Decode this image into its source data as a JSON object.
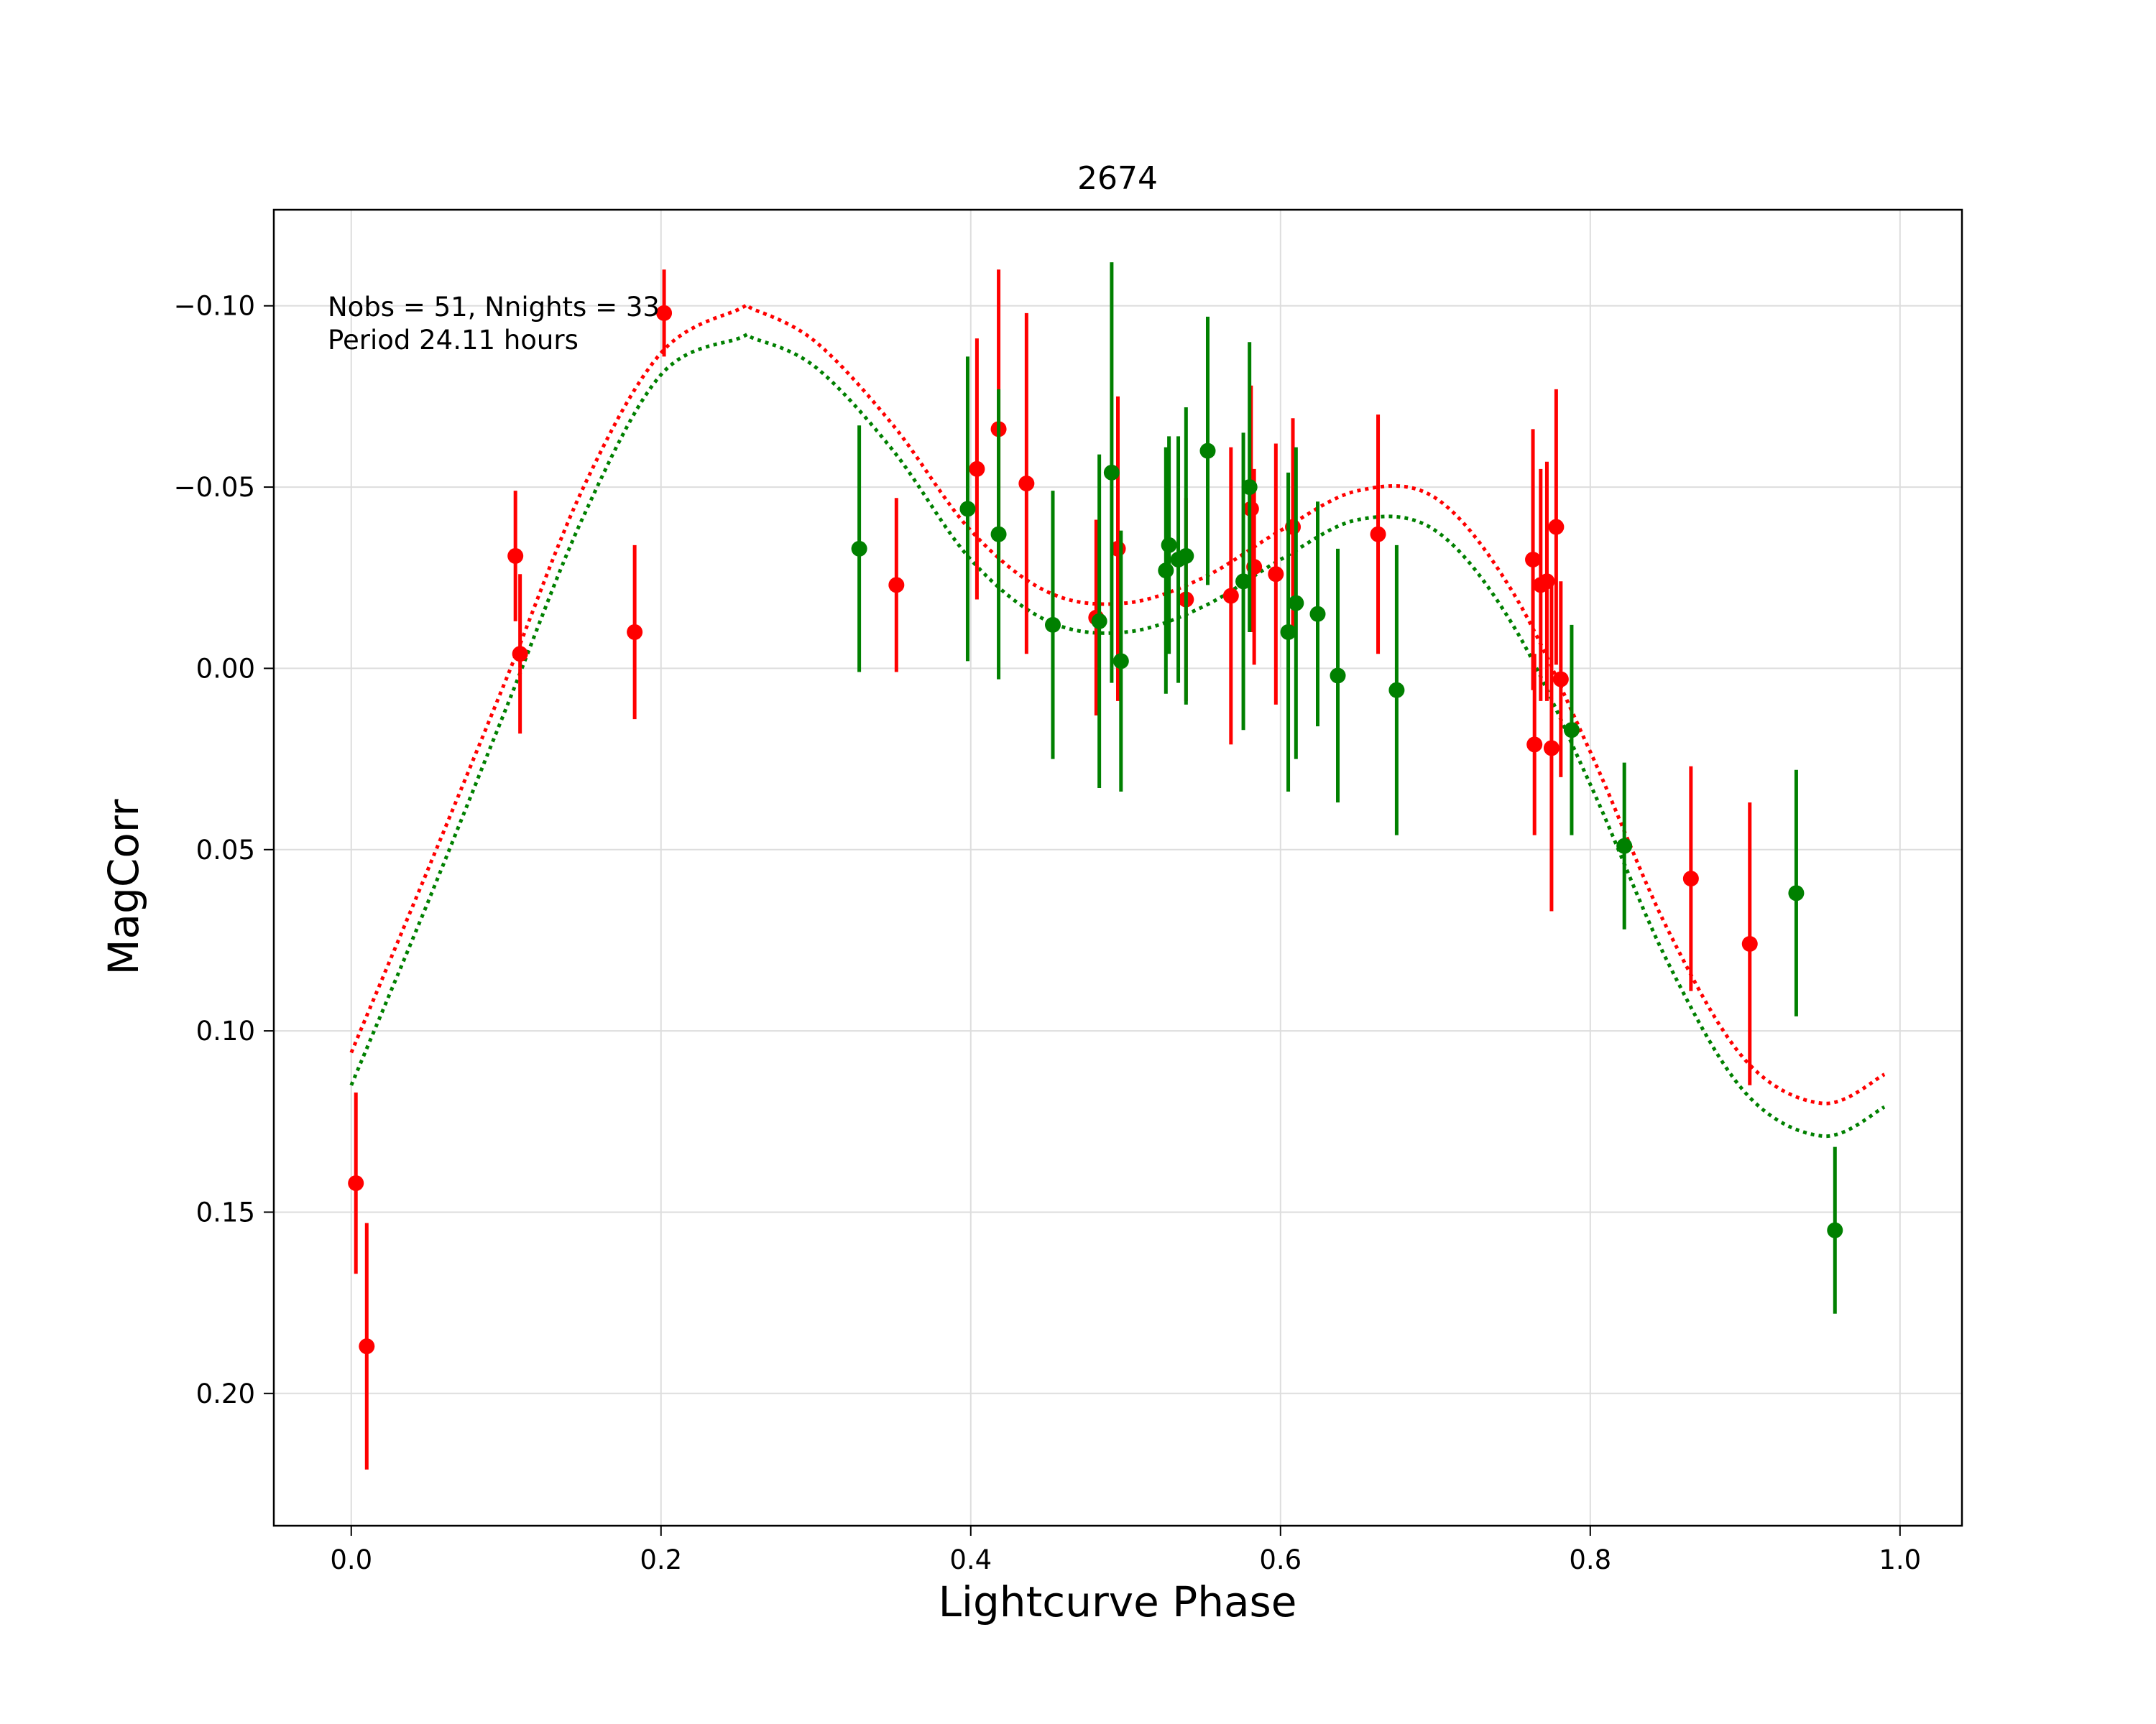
{
  "chart_data": {
    "type": "scatter",
    "title": "2674",
    "xlabel": "Lightcurve Phase",
    "ylabel": "MagCorr",
    "xlim": [
      -0.05,
      1.04
    ],
    "ylim": [
      0.2365,
      -0.1265
    ],
    "y_inverted": true,
    "grid": true,
    "xticks": [
      {
        "value": 0.0,
        "label": "0.0"
      },
      {
        "value": 0.2,
        "label": "0.2"
      },
      {
        "value": 0.4,
        "label": "0.4"
      },
      {
        "value": 0.6,
        "label": "0.6"
      },
      {
        "value": 0.8,
        "label": "0.8"
      },
      {
        "value": 1.0,
        "label": "1.0"
      }
    ],
    "yticks": [
      {
        "value": -0.1,
        "label": "−0.10"
      },
      {
        "value": -0.05,
        "label": "−0.05"
      },
      {
        "value": 0.0,
        "label": "0.00"
      },
      {
        "value": 0.05,
        "label": "0.05"
      },
      {
        "value": 0.1,
        "label": "0.10"
      },
      {
        "value": 0.15,
        "label": "0.15"
      },
      {
        "value": 0.2,
        "label": "0.20"
      }
    ],
    "annotations": [
      "Nobs = 51, Nnights = 33",
      "Period 24.11 hours"
    ],
    "series": [
      {
        "color": "#ff0000",
        "points": [
          [
            0.003,
            0.142,
            0.025
          ],
          [
            0.01,
            0.187,
            0.034
          ],
          [
            0.106,
            -0.031,
            0.018
          ],
          [
            0.109,
            -0.004,
            0.022
          ],
          [
            0.183,
            -0.01,
            0.024
          ],
          [
            0.202,
            -0.098,
            0.012
          ],
          [
            0.352,
            -0.023,
            0.024
          ],
          [
            0.404,
            -0.055,
            0.036
          ],
          [
            0.418,
            -0.066,
            0.044
          ],
          [
            0.436,
            -0.051,
            0.047
          ],
          [
            0.481,
            -0.014,
            0.027
          ],
          [
            0.495,
            -0.033,
            0.042
          ],
          [
            0.539,
            -0.019,
            0.028
          ],
          [
            0.568,
            -0.02,
            0.041
          ],
          [
            0.581,
            -0.044,
            0.034
          ],
          [
            0.583,
            -0.028,
            0.027
          ],
          [
            0.597,
            -0.026,
            0.036
          ],
          [
            0.608,
            -0.039,
            0.03
          ],
          [
            0.663,
            -0.037,
            0.033
          ],
          [
            0.763,
            -0.03,
            0.036
          ],
          [
            0.764,
            0.021,
            0.025
          ],
          [
            0.768,
            -0.023,
            0.032
          ],
          [
            0.772,
            -0.024,
            0.033
          ],
          [
            0.775,
            0.022,
            0.045
          ],
          [
            0.778,
            -0.039,
            0.038
          ],
          [
            0.781,
            0.003,
            0.027
          ],
          [
            0.865,
            0.058,
            0.031
          ],
          [
            0.903,
            0.076,
            0.039
          ]
        ]
      },
      {
        "color": "#008000",
        "points": [
          [
            0.328,
            -0.033,
            0.034
          ],
          [
            0.398,
            -0.044,
            0.042
          ],
          [
            0.418,
            -0.037,
            0.04
          ],
          [
            0.453,
            -0.012,
            0.037
          ],
          [
            0.483,
            -0.013,
            0.046
          ],
          [
            0.491,
            -0.054,
            0.058
          ],
          [
            0.497,
            -0.002,
            0.036
          ],
          [
            0.526,
            -0.027,
            0.034
          ],
          [
            0.528,
            -0.034,
            0.03
          ],
          [
            0.534,
            -0.03,
            0.034
          ],
          [
            0.539,
            -0.031,
            0.041
          ],
          [
            0.553,
            -0.06,
            0.037
          ],
          [
            0.576,
            -0.024,
            0.041
          ],
          [
            0.58,
            -0.05,
            0.04
          ],
          [
            0.605,
            -0.01,
            0.044
          ],
          [
            0.61,
            -0.018,
            0.043
          ],
          [
            0.624,
            -0.015,
            0.031
          ],
          [
            0.637,
            0.002,
            0.035
          ],
          [
            0.675,
            0.006,
            0.04
          ],
          [
            0.788,
            0.017,
            0.029
          ],
          [
            0.822,
            0.049,
            0.023
          ],
          [
            0.933,
            0.062,
            0.034
          ],
          [
            0.958,
            0.155,
            0.023
          ]
        ]
      }
    ],
    "model_curves": [
      {
        "color": "#ff0000",
        "style": "dotted",
        "x": [
          0.0,
          0.05,
          0.1,
          0.15,
          0.2,
          0.25,
          0.26,
          0.3,
          0.35,
          0.4,
          0.45,
          0.5,
          0.55,
          0.6,
          0.65,
          0.7,
          0.75,
          0.8,
          0.85,
          0.9,
          0.95,
          0.99
        ],
        "y": [
          0.106,
          0.055,
          0.003,
          -0.05,
          -0.087,
          -0.099,
          -0.099,
          -0.09,
          -0.067,
          -0.038,
          -0.021,
          -0.018,
          -0.025,
          -0.038,
          -0.049,
          -0.047,
          -0.021,
          0.023,
          0.072,
          0.108,
          0.12,
          0.112
        ]
      },
      {
        "color": "#008000",
        "style": "dotted",
        "x": [
          0.0,
          0.05,
          0.1,
          0.15,
          0.2,
          0.25,
          0.26,
          0.3,
          0.35,
          0.4,
          0.45,
          0.5,
          0.55,
          0.6,
          0.65,
          0.7,
          0.75,
          0.8,
          0.85,
          0.9,
          0.95,
          0.99
        ],
        "y": [
          0.115,
          0.064,
          0.011,
          -0.042,
          -0.081,
          -0.091,
          -0.091,
          -0.083,
          -0.06,
          -0.03,
          -0.013,
          -0.01,
          -0.017,
          -0.03,
          -0.041,
          -0.038,
          -0.012,
          0.032,
          0.081,
          0.117,
          0.129,
          0.121
        ]
      }
    ]
  }
}
